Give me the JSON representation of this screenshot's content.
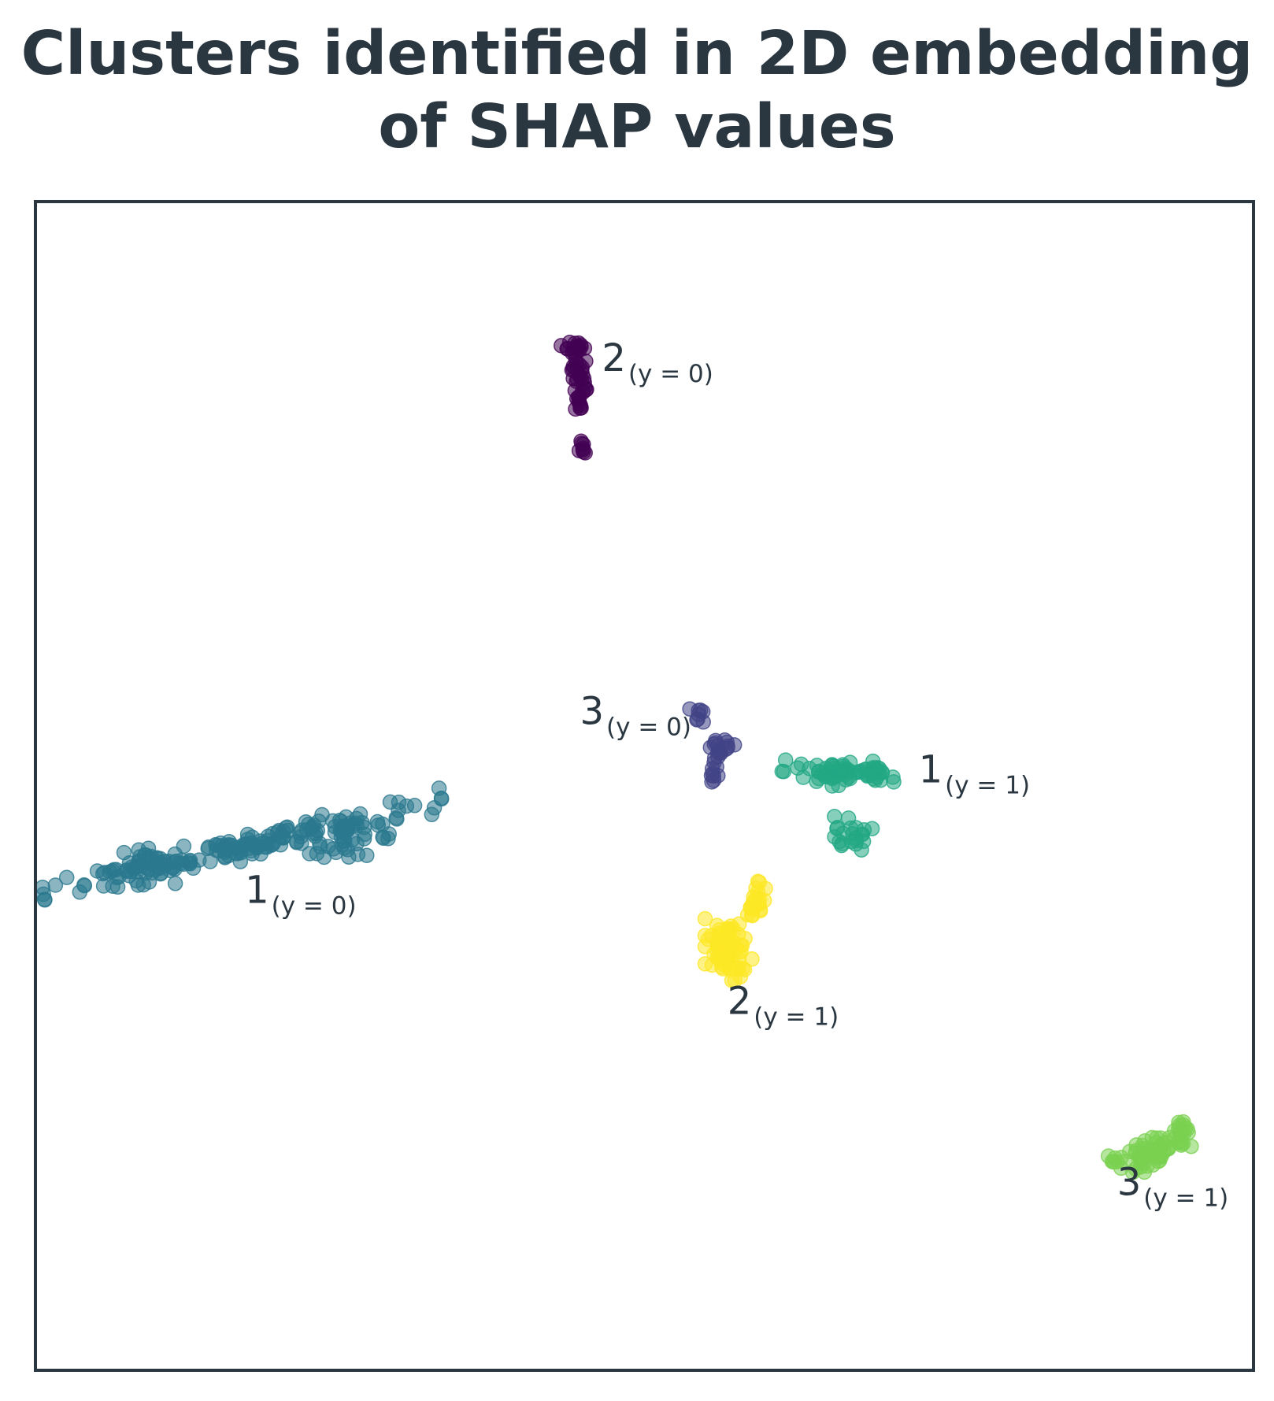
{
  "chart_data": {
    "type": "scatter",
    "title_lines": [
      "Clusters identified in 2D embedding",
      "of SHAP values"
    ],
    "xlabel": "",
    "ylabel": "",
    "axis_ticks": false,
    "grid": false,
    "frame_color": "#2a3640",
    "clusters": [
      {
        "key": "c2y0",
        "label_main": "2",
        "label_sub": "(y = 0)",
        "color": "#440154",
        "label_anchor": [
          0.465,
          0.145
        ],
        "label_side": "right",
        "blobs": [
          {
            "cx": 0.443,
            "cy": 0.125,
            "rx": 0.01,
            "ry": 0.006,
            "n": 14,
            "angle": 0
          },
          {
            "cx": 0.447,
            "cy": 0.145,
            "rx": 0.006,
            "ry": 0.02,
            "n": 30,
            "angle": 0
          },
          {
            "cx": 0.448,
            "cy": 0.172,
            "rx": 0.004,
            "ry": 0.008,
            "n": 10,
            "angle": 0
          },
          {
            "cx": 0.448,
            "cy": 0.21,
            "rx": 0.004,
            "ry": 0.006,
            "n": 8,
            "angle": 0
          }
        ]
      },
      {
        "key": "c3y0",
        "label_main": "3",
        "label_sub": "(y = 0)",
        "color": "#414487",
        "label_anchor": [
          0.447,
          0.447
        ],
        "label_side": "right",
        "blobs": [
          {
            "cx": 0.543,
            "cy": 0.438,
            "rx": 0.005,
            "ry": 0.01,
            "n": 8,
            "angle": -35
          },
          {
            "cx": 0.561,
            "cy": 0.468,
            "rx": 0.011,
            "ry": 0.01,
            "n": 18,
            "angle": 0
          },
          {
            "cx": 0.557,
            "cy": 0.487,
            "rx": 0.004,
            "ry": 0.009,
            "n": 8,
            "angle": 0
          }
        ]
      },
      {
        "key": "c1y0",
        "label_main": "1",
        "label_sub": "(y = 0)",
        "color": "#2a788e",
        "label_anchor": [
          0.172,
          0.6
        ],
        "label_side": "right",
        "blobs": [
          {
            "cx": 0.17,
            "cy": 0.552,
            "rx": 0.14,
            "ry": 0.01,
            "n": 150,
            "angle": -13
          },
          {
            "cx": 0.095,
            "cy": 0.57,
            "rx": 0.035,
            "ry": 0.014,
            "n": 40,
            "angle": -10
          },
          {
            "cx": 0.25,
            "cy": 0.547,
            "rx": 0.04,
            "ry": 0.012,
            "n": 35,
            "angle": -5
          },
          {
            "cx": 0.253,
            "cy": 0.536,
            "rx": 0.009,
            "ry": 0.004,
            "n": 8,
            "angle": 0
          }
        ]
      },
      {
        "key": "c1y1",
        "label_main": "1",
        "label_sub": "(y = 1)",
        "color": "#22a884",
        "label_anchor": [
          0.725,
          0.497
        ],
        "label_side": "right",
        "blobs": [
          {
            "cx": 0.665,
            "cy": 0.488,
            "rx": 0.045,
            "ry": 0.01,
            "n": 70,
            "angle": 0
          },
          {
            "cx": 0.671,
            "cy": 0.54,
            "rx": 0.016,
            "ry": 0.012,
            "n": 22,
            "angle": 25
          }
        ]
      },
      {
        "key": "c2y1",
        "label_main": "2",
        "label_sub": "(y = 1)",
        "color": "#fde725",
        "label_anchor": [
          0.568,
          0.695
        ],
        "label_side": "right",
        "blobs": [
          {
            "cx": 0.569,
            "cy": 0.64,
            "rx": 0.016,
            "ry": 0.022,
            "n": 70,
            "angle": 0
          },
          {
            "cx": 0.592,
            "cy": 0.6,
            "rx": 0.007,
            "ry": 0.015,
            "n": 22,
            "angle": 25
          }
        ]
      },
      {
        "key": "c3y1",
        "label_main": "3",
        "label_sub": "(y = 1)",
        "color": "#7ad151",
        "label_anchor": [
          0.888,
          0.85
        ],
        "label_side": "right",
        "blobs": [
          {
            "cx": 0.915,
            "cy": 0.815,
            "rx": 0.022,
            "ry": 0.01,
            "n": 50,
            "angle": -25
          },
          {
            "cx": 0.885,
            "cy": 0.82,
            "rx": 0.008,
            "ry": 0.005,
            "n": 8,
            "angle": 0
          },
          {
            "cx": 0.94,
            "cy": 0.795,
            "rx": 0.008,
            "ry": 0.012,
            "n": 18,
            "angle": 0
          }
        ]
      }
    ]
  }
}
